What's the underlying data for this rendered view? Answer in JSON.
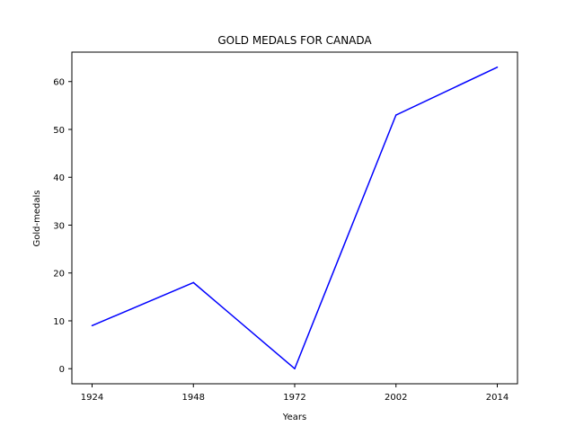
{
  "chart_data": {
    "type": "line",
    "title": "GOLD MEDALS FOR CANADA",
    "xlabel": "Years",
    "ylabel": "Gold-medals",
    "categories": [
      "1924",
      "1948",
      "1972",
      "2002",
      "2014"
    ],
    "series": [
      {
        "values": [
          9,
          18,
          0,
          53,
          63
        ],
        "color": "#0000ff"
      }
    ],
    "ylim": [
      -3.15,
      66.15
    ],
    "yticks": [
      0,
      10,
      20,
      30,
      40,
      50,
      60
    ],
    "grid": false,
    "legend": "none"
  }
}
